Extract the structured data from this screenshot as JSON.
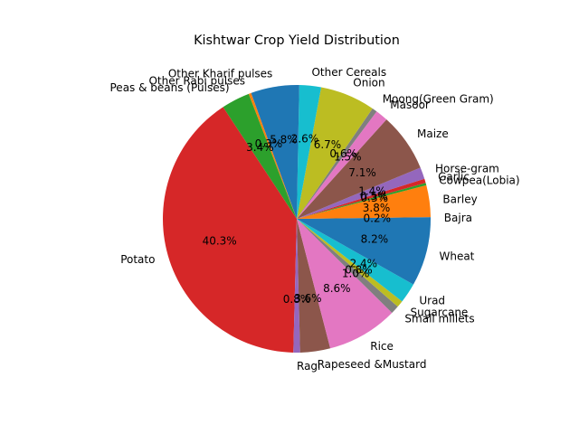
{
  "chart_data": {
    "type": "pie",
    "title": "Kishtwar Crop Yield Distribution",
    "start_angle_deg": 0,
    "direction": "counterclockwise",
    "slices": [
      {
        "label": "Bajra",
        "value": 0.2,
        "color": "#1f77b4"
      },
      {
        "label": "Barley",
        "value": 3.8,
        "color": "#ff7f0e"
      },
      {
        "label": "Cowpea(Lobia)",
        "value": 0.3,
        "color": "#2ca02c"
      },
      {
        "label": "Garlic",
        "value": 0.5,
        "color": "#d62728"
      },
      {
        "label": "Horse-gram",
        "value": 1.4,
        "color": "#9467bd"
      },
      {
        "label": "Maize",
        "value": 7.0,
        "color": "#8c564b"
      },
      {
        "label": "Masoor",
        "value": 1.5,
        "color": "#e377c2"
      },
      {
        "label": "Moong(Green Gram)",
        "value": 0.6,
        "color": "#7f7f7f"
      },
      {
        "label": "Onion",
        "value": 6.6,
        "color": "#bcbd22"
      },
      {
        "label": "Other Cereals",
        "value": 2.6,
        "color": "#17becf"
      },
      {
        "label": "Other Kharif pulses",
        "value": 5.8,
        "color": "#1f77b4"
      },
      {
        "label": "Other Rabi pulses",
        "value": 0.3,
        "color": "#ff7f0e"
      },
      {
        "label": "Peas & beans (Pulses)",
        "value": 3.4,
        "color": "#2ca02c"
      },
      {
        "label": "Potato",
        "value": 40.0,
        "color": "#d62728"
      },
      {
        "label": "Ragi",
        "value": 0.8,
        "color": "#9467bd"
      },
      {
        "label": "Rapeseed &Mustard",
        "value": 3.6,
        "color": "#8c564b"
      },
      {
        "label": "Rice",
        "value": 8.5,
        "color": "#e377c2"
      },
      {
        "label": "Small millets",
        "value": 1.0,
        "color": "#7f7f7f"
      },
      {
        "label": "Sugarcane",
        "value": 0.8,
        "color": "#bcbd22"
      },
      {
        "label": "Urad",
        "value": 2.4,
        "color": "#17becf"
      },
      {
        "label": "Wheat",
        "value": 8.1,
        "color": "#1f77b4"
      }
    ]
  }
}
